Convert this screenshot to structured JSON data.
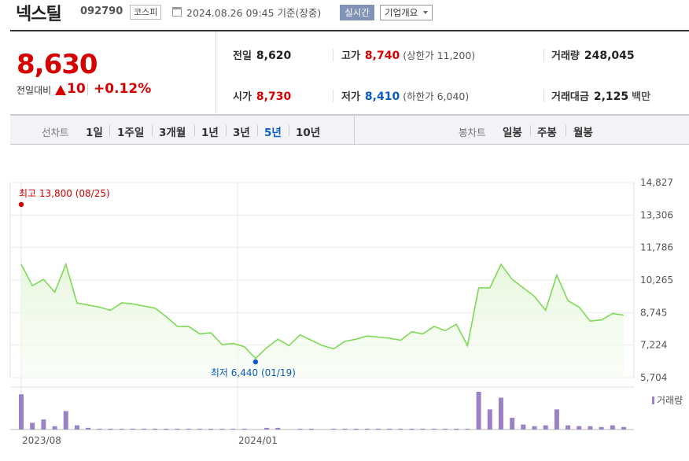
{
  "header": {
    "stock_name": "넥스틸",
    "stock_code": "092790",
    "market": "코스피",
    "date_text": "2024.08.26 09:45 기준(장중)",
    "realtime_label": "실시간",
    "company_label": "기업개요"
  },
  "summary": {
    "price": "8,630",
    "change_label": "전일대비",
    "change_value": "10",
    "change_pct": "+0.12%",
    "prev_close_label": "전일",
    "prev_close": "8,620",
    "high_label": "고가",
    "high": "8,740",
    "upper_limit_text": "(상한가 11,200)",
    "volume_label": "거래량",
    "volume": "248,045",
    "open_label": "시가",
    "open": "8,730",
    "low_label": "저가",
    "low": "8,410",
    "lower_limit_text": "(하한가 6,040)",
    "amount_label": "거래대금",
    "amount": "2,125",
    "amount_unit": "백만"
  },
  "toolbar": {
    "line_chart_label": "선차트",
    "periods": [
      "1일",
      "1주일",
      "3개월",
      "1년",
      "3년",
      "5년",
      "10년"
    ],
    "active_period": "5년",
    "candle_chart_label": "봉차트",
    "candle_periods": [
      "일봉",
      "주봉",
      "월봉"
    ]
  },
  "colors": {
    "up": "#d60000",
    "down": "#0b5bc4",
    "line": "#7ed957",
    "volume": "#9b82c4"
  },
  "chart_data": {
    "type": "line",
    "ylim": [
      5704,
      14827
    ],
    "yticks": [
      "14,827",
      "13,306",
      "11,786",
      "10,265",
      "8,745",
      "7,224",
      "5,704"
    ],
    "xticks": [
      "2023/08",
      "2024/01"
    ],
    "high_label": "최고 13,800 (08/25)",
    "low_label": "최저 6,440 (01/19)",
    "volume_legend": "거래량",
    "values": [
      11000,
      10000,
      10300,
      9700,
      11000,
      9200,
      9100,
      9000,
      8850,
      9200,
      9150,
      9050,
      8950,
      8550,
      8100,
      8100,
      7750,
      7800,
      7250,
      7300,
      7150,
      6600,
      7100,
      7500,
      7200,
      7700,
      7450,
      7200,
      7050,
      7400,
      7500,
      7650,
      7600,
      7550,
      7450,
      7850,
      7750,
      8100,
      7900,
      8200,
      7200,
      9900,
      9900,
      11000,
      10300,
      9900,
      9500,
      8850,
      10500,
      9300,
      9000,
      8350,
      8400,
      8700,
      8630
    ],
    "volumes": [
      42,
      8,
      12,
      4,
      22,
      5,
      2,
      1,
      1,
      1,
      1,
      1,
      1,
      1,
      1,
      1,
      1,
      1,
      1,
      1,
      1,
      0,
      2,
      2,
      0,
      1,
      1,
      0,
      1,
      1,
      1,
      1,
      1,
      1,
      1,
      1,
      1,
      1,
      1,
      1,
      1,
      45,
      24,
      38,
      14,
      6,
      4,
      5,
      24,
      5,
      4,
      4,
      3,
      5,
      3
    ],
    "high_value": 13800,
    "high_date": "08/25",
    "low_value": 6440,
    "low_date": "01/19"
  }
}
